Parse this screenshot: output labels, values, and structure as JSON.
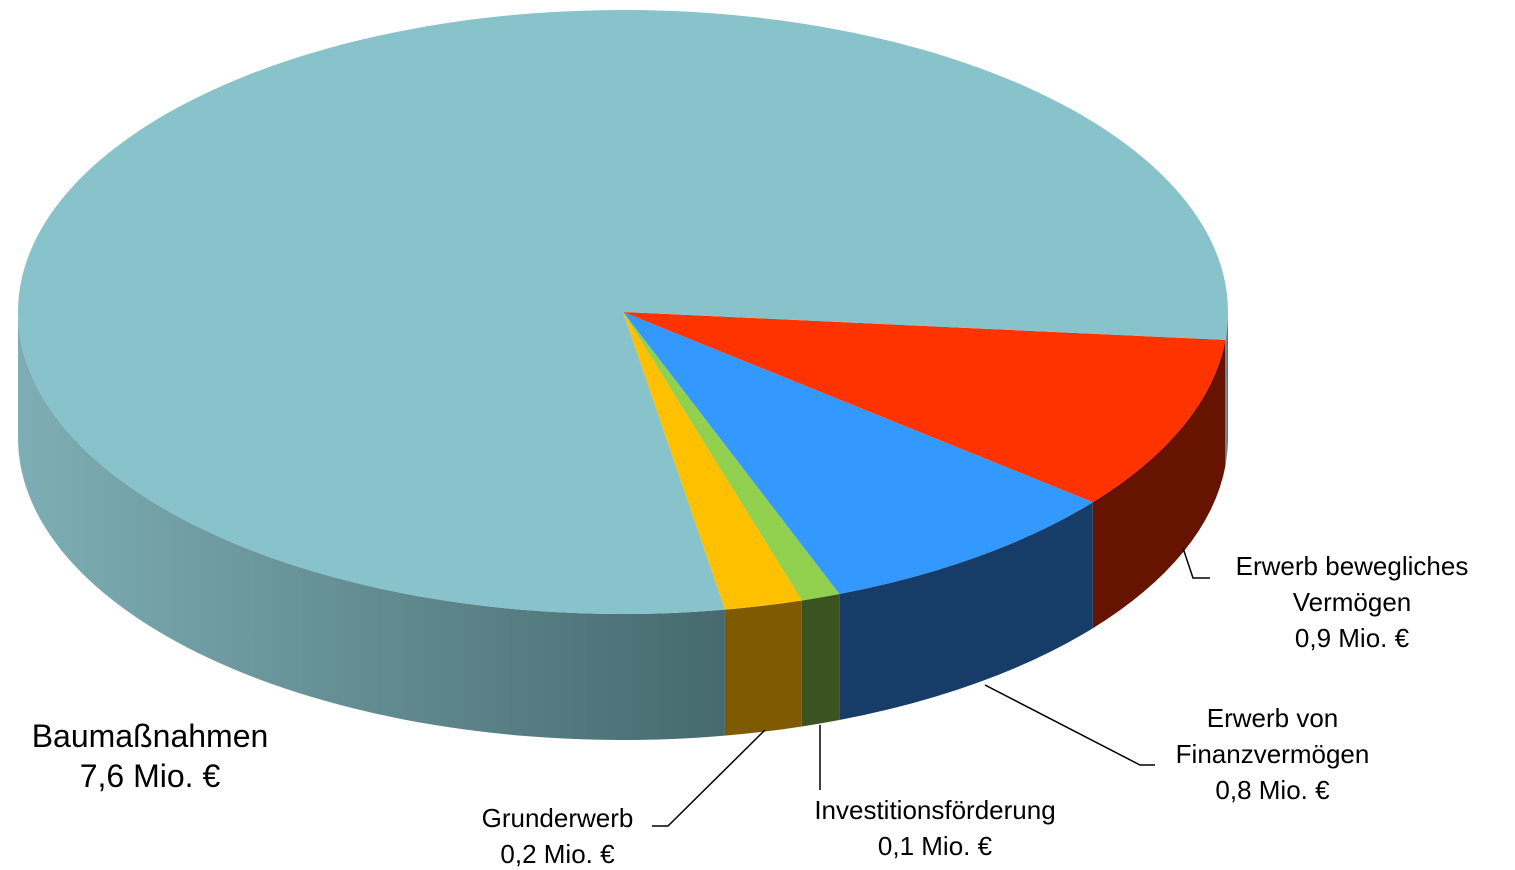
{
  "chart_data": {
    "type": "pie3d",
    "categories": [
      "Erwerb bewegliches Vermögen",
      "Erwerb von Finanzvermögen",
      "Investitionsförderung",
      "Grunderwerb",
      "Baumaßnahmen"
    ],
    "values": [
      0.9,
      0.8,
      0.1,
      0.2,
      7.6
    ],
    "value_labels": [
      "0,9 Mio. €",
      "0,8 Mio. €",
      "0,1 Mio. €",
      "0,2 Mio. €",
      "7,6 Mio. €"
    ],
    "colors": [
      "#ff3300",
      "#3399ff",
      "#92d050",
      "#ffc000",
      "#88c2cb"
    ]
  }
}
